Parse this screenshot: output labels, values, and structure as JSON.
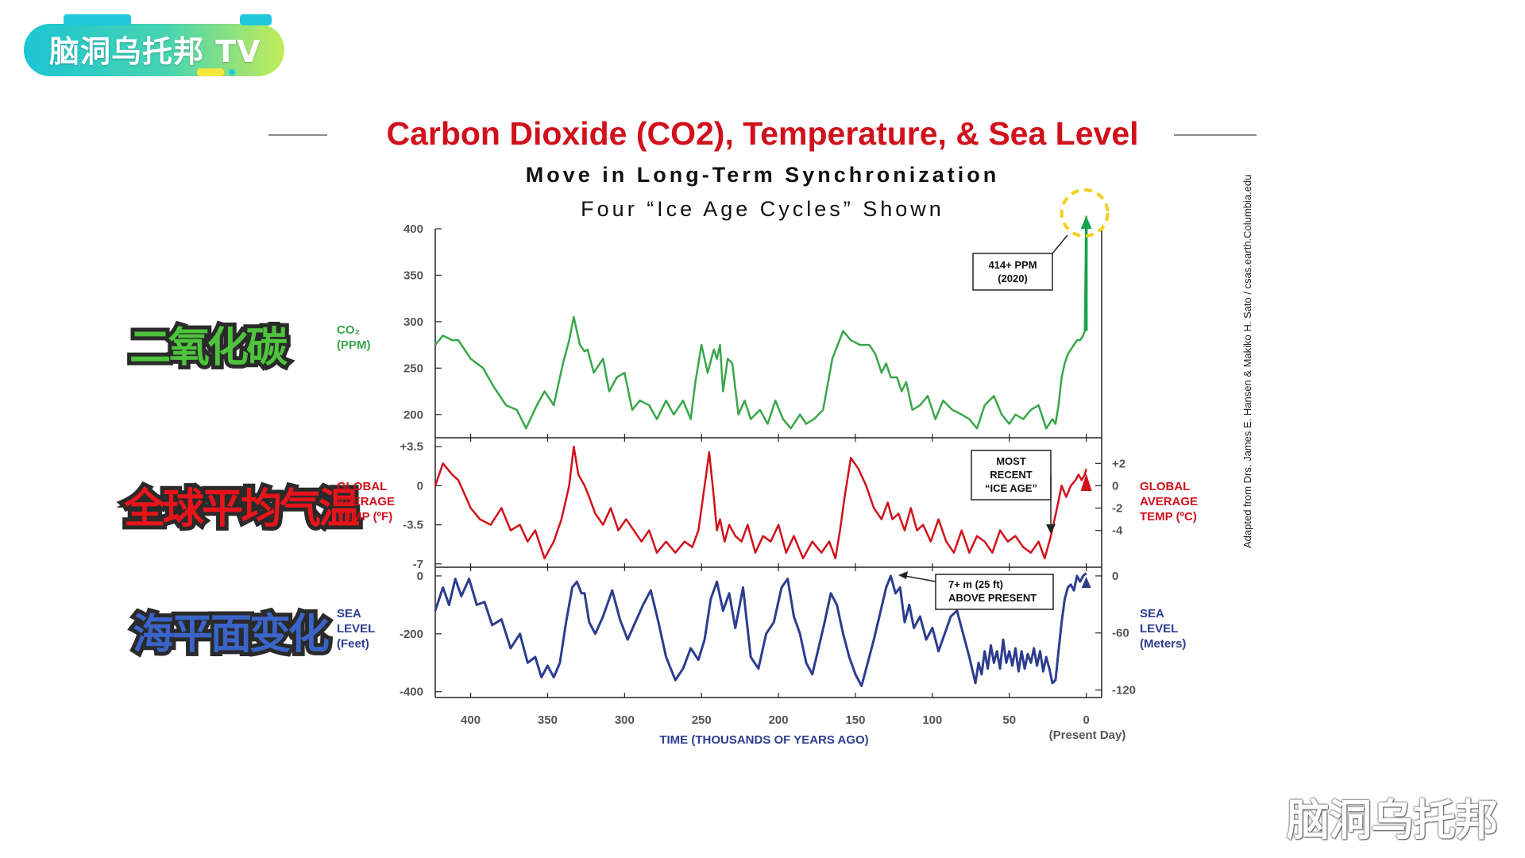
{
  "logo": {
    "text": "脑洞乌托邦 TV"
  },
  "header": {
    "title": "Carbon Dioxide (CO2), Temperature, & Sea Level",
    "subtitle": "Move in Long-Term Synchronization",
    "subtitle2": "Four “Ice Age Cycles” Shown"
  },
  "cn_labels": {
    "co2": "二氧化碳",
    "temp": "全球平均气温",
    "sea": "海平面变化"
  },
  "credit": "Adapted from Drs. James E. Hansen & Makiko H. Sato / csas.earth.Columbia.edu",
  "watermark": "脑洞乌托邦",
  "colors": {
    "title": "#d0111b",
    "co2": "#3aa64a",
    "temp": "#d0111b",
    "sea": "#2c3d8f",
    "arrow": "#13a24f",
    "highlight": "#f2d020"
  },
  "chart_data": {
    "type": "line",
    "xlabel": "TIME (THOUSANDS OF YEARS AGO)",
    "x_ticks": [
      400,
      350,
      300,
      250,
      200,
      150,
      100,
      50,
      0
    ],
    "x_tick_labels": [
      "400",
      "350",
      "300",
      "250",
      "200",
      "150",
      "100",
      "50",
      "0"
    ],
    "x_note": "(Present Day)",
    "xlim": [
      423,
      -10
    ],
    "panels": [
      {
        "name": "co2",
        "left_label": [
          "CO₂",
          "(PPM)"
        ],
        "ylim": [
          175,
          400
        ],
        "left_ticks": [
          400,
          350,
          300,
          250,
          200
        ],
        "left_tick_labels": [
          "400",
          "350",
          "300",
          "250",
          "200"
        ],
        "series": {
          "x": [
            423,
            418,
            412,
            408,
            400,
            392,
            385,
            377,
            370,
            364,
            357,
            352,
            346,
            340,
            336,
            333,
            329,
            326,
            324,
            320,
            314,
            310,
            305,
            300,
            295,
            290,
            284,
            279,
            273,
            268,
            262,
            257,
            254,
            250,
            246,
            242,
            240,
            238,
            236,
            233,
            230,
            226,
            222,
            218,
            212,
            207,
            202,
            197,
            192,
            186,
            182,
            177,
            171,
            165,
            158,
            153,
            147,
            141,
            137,
            133,
            130,
            127,
            123,
            120,
            117,
            113,
            108,
            103,
            98,
            93,
            87,
            81,
            76,
            71,
            66,
            60,
            55,
            50,
            46,
            41,
            36,
            31,
            26,
            22,
            20,
            18,
            16,
            14,
            12,
            10,
            8,
            6,
            4,
            2,
            1,
            0
          ],
          "values": [
            275,
            285,
            280,
            280,
            260,
            250,
            230,
            210,
            205,
            185,
            210,
            225,
            210,
            255,
            280,
            305,
            275,
            268,
            270,
            245,
            260,
            225,
            240,
            245,
            205,
            215,
            210,
            195,
            215,
            200,
            215,
            195,
            235,
            275,
            245,
            270,
            260,
            275,
            225,
            260,
            255,
            200,
            215,
            195,
            205,
            190,
            215,
            195,
            185,
            200,
            190,
            195,
            205,
            260,
            290,
            280,
            275,
            275,
            265,
            245,
            255,
            240,
            240,
            225,
            235,
            205,
            210,
            220,
            195,
            215,
            205,
            200,
            195,
            185,
            210,
            220,
            200,
            190,
            200,
            195,
            205,
            210,
            185,
            195,
            190,
            210,
            240,
            255,
            265,
            270,
            275,
            280,
            280,
            285,
            290,
            414
          ]
        },
        "annotation": "414+ PPM (2020)"
      },
      {
        "name": "temp",
        "left_label": [
          "GLOBAL",
          "AVERAGE",
          "TEMP (ºF)"
        ],
        "right_label": [
          "GLOBAL",
          "AVERAGE",
          "TEMP (ºC)"
        ],
        "ylim": [
          -7.3,
          4.3
        ],
        "left_ticks": [
          3.5,
          0,
          -3.5,
          -7
        ],
        "left_tick_labels": [
          "+3.5",
          "0",
          "-3.5",
          "-7"
        ],
        "right_ticks": [
          2,
          0,
          -2,
          -4
        ],
        "right_tick_labels": [
          "+2",
          "0",
          "-2",
          "-4"
        ],
        "series": {
          "x": [
            423,
            418,
            412,
            408,
            400,
            394,
            387,
            380,
            374,
            368,
            363,
            358,
            352,
            346,
            341,
            336,
            333,
            330,
            326,
            323,
            319,
            314,
            309,
            304,
            299,
            294,
            289,
            284,
            279,
            273,
            267,
            261,
            256,
            252,
            249,
            245,
            242,
            240,
            238,
            235,
            232,
            228,
            224,
            220,
            215,
            210,
            205,
            200,
            195,
            190,
            184,
            178,
            172,
            167,
            163,
            160,
            157,
            153,
            148,
            143,
            138,
            133,
            129,
            126,
            122,
            118,
            114,
            110,
            106,
            101,
            96,
            91,
            86,
            81,
            76,
            71,
            66,
            61,
            56,
            51,
            46,
            41,
            36,
            31,
            27,
            23,
            19,
            16,
            13,
            10,
            7,
            5,
            3,
            1,
            0
          ],
          "values": [
            0,
            2,
            1,
            0.5,
            -2,
            -3,
            -3.5,
            -2,
            -4,
            -3.5,
            -5,
            -4,
            -6.5,
            -5,
            -3,
            0,
            3.5,
            1,
            0,
            -1,
            -2.5,
            -3.5,
            -2,
            -4,
            -3,
            -4,
            -5,
            -4,
            -6,
            -5,
            -6,
            -5,
            -5.5,
            -4,
            -1,
            3,
            -1,
            -4,
            -3,
            -5,
            -3.5,
            -4.5,
            -5,
            -3.5,
            -6,
            -4.5,
            -5,
            -3.5,
            -6,
            -4.5,
            -6.5,
            -5,
            -6,
            -5,
            -6.5,
            -4,
            -1,
            2.5,
            1.5,
            0,
            -2,
            -3,
            -1.5,
            -3,
            -2.5,
            -4,
            -2,
            -4,
            -3.5,
            -5,
            -3,
            -5,
            -6,
            -4,
            -6,
            -4.5,
            -5,
            -6,
            -4,
            -5,
            -4.5,
            -5.5,
            -6,
            -5,
            -6.5,
            -4.5,
            -2,
            0,
            -1,
            0,
            0.5,
            1,
            0.5,
            1,
            1.5
          ]
        },
        "annotation": "MOST RECENT “ICE AGE”"
      },
      {
        "name": "sea",
        "left_label": [
          "SEA",
          "LEVEL",
          "(Feet)"
        ],
        "right_label": [
          "SEA",
          "LEVEL",
          "(Meters)"
        ],
        "ylim": [
          -420,
          30
        ],
        "left_ticks": [
          0,
          -200,
          -400
        ],
        "left_tick_labels": [
          "0",
          "-200",
          "-400"
        ],
        "right_ticks": [
          0,
          -197,
          -394
        ],
        "right_tick_labels": [
          "0",
          "-60",
          "-120"
        ],
        "series": {
          "x": [
            423,
            418,
            414,
            410,
            406,
            401,
            396,
            391,
            386,
            380,
            374,
            368,
            363,
            358,
            354,
            350,
            346,
            342,
            338,
            334,
            331,
            328,
            326,
            323,
            319,
            314,
            308,
            303,
            298,
            293,
            288,
            283,
            278,
            273,
            267,
            262,
            257,
            252,
            248,
            244,
            240,
            236,
            232,
            228,
            223,
            218,
            213,
            208,
            203,
            198,
            194,
            190,
            186,
            182,
            178,
            174,
            170,
            166,
            162,
            158,
            154,
            150,
            146,
            142,
            138,
            134,
            130,
            127,
            124,
            121,
            118,
            115,
            112,
            108,
            104,
            100,
            96,
            92,
            88,
            84,
            80,
            76,
            72,
            70,
            68,
            66,
            64,
            62,
            60,
            58,
            56,
            54,
            52,
            50,
            48,
            46,
            44,
            42,
            40,
            38,
            36,
            34,
            32,
            30,
            28,
            26,
            24,
            22,
            20,
            18,
            16,
            14,
            12,
            10,
            8,
            6,
            4,
            2,
            0
          ],
          "values": [
            -120,
            -40,
            -100,
            -10,
            -70,
            -10,
            -100,
            -90,
            -170,
            -150,
            -250,
            -200,
            -300,
            -280,
            -350,
            -310,
            -350,
            -300,
            -160,
            -40,
            -20,
            -60,
            -60,
            -160,
            -200,
            -140,
            -50,
            -150,
            -220,
            -160,
            -100,
            -50,
            -160,
            -280,
            -360,
            -320,
            -250,
            -290,
            -220,
            -80,
            -20,
            -120,
            -60,
            -180,
            -40,
            -280,
            -320,
            -200,
            -160,
            -40,
            -10,
            -140,
            -200,
            -300,
            -340,
            -250,
            -160,
            -60,
            -100,
            -200,
            -280,
            -340,
            -380,
            -300,
            -220,
            -130,
            -40,
            0,
            -60,
            -40,
            -160,
            -100,
            -180,
            -140,
            -220,
            -180,
            -260,
            -200,
            -140,
            -120,
            -200,
            -280,
            -370,
            -300,
            -340,
            -260,
            -320,
            -240,
            -300,
            -260,
            -320,
            -220,
            -300,
            -260,
            -310,
            -250,
            -330,
            -260,
            -320,
            -270,
            -300,
            -250,
            -310,
            -260,
            -330,
            -280,
            -320,
            -370,
            -360,
            -260,
            -160,
            -80,
            -40,
            -30,
            -50,
            0,
            -20,
            0,
            10
          ]
        },
        "annotation": "7+ m (25 ft) ABOVE PRESENT"
      }
    ]
  }
}
